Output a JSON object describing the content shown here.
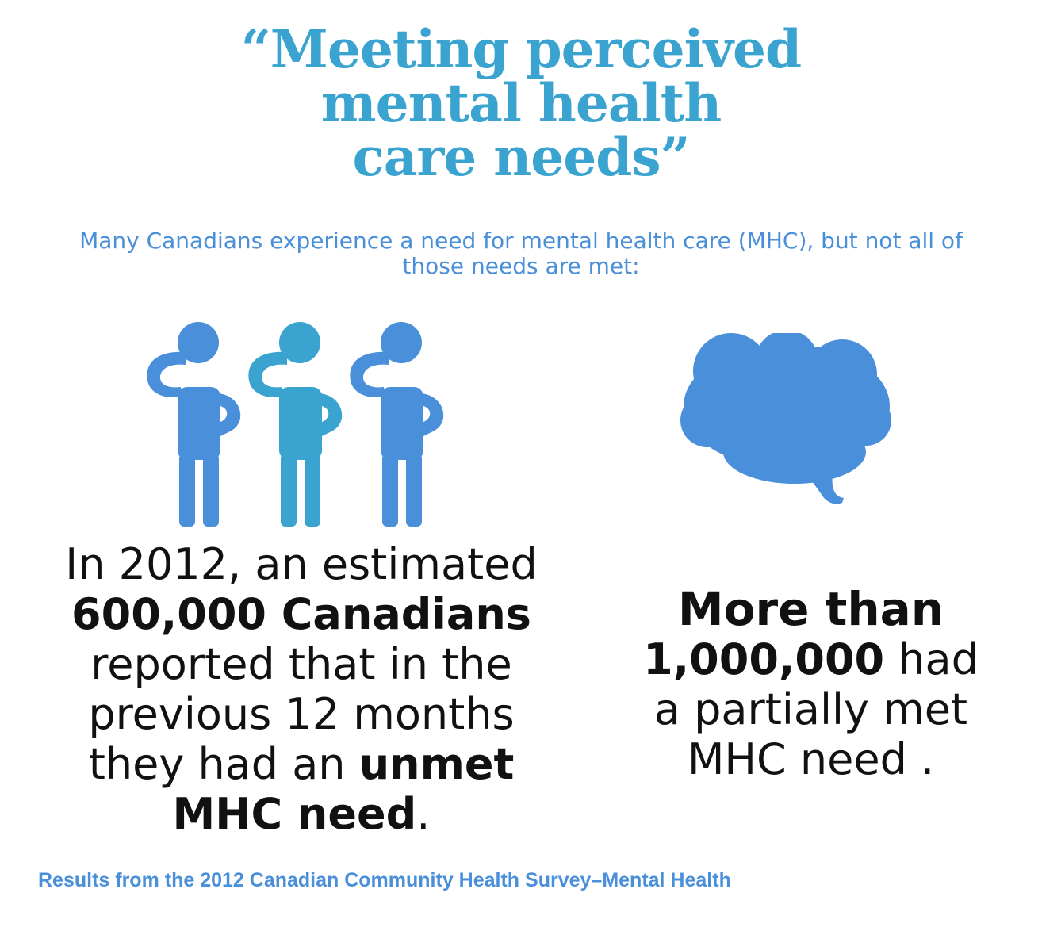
{
  "title": {
    "line1": "“Meeting perceived",
    "line2": "mental health",
    "line3": "care needs”"
  },
  "subtitle": "Many Canadians experience a need for mental health care (MHC), but not all of those needs are met:",
  "icons": {
    "people": "people-thinking-icon",
    "brain": "brain-icon",
    "colors": {
      "primary": "#4a8fd9",
      "accent": "#3aa3cf"
    }
  },
  "stat_left": {
    "line1": "In 2012, an estimated",
    "line2_bold": "600,000 Canadians",
    "line3": "reported that in the",
    "line4": "previous 12 months",
    "line5_pre": "they had an ",
    "line5_bold": "unmet",
    "line6_bold": "MHC need",
    "line6_post": "."
  },
  "stat_right": {
    "line1_bold": "More than",
    "line2_bold": "1,000,000",
    "line2_post": " had",
    "line3": "a partially met",
    "line4": "MHC need ."
  },
  "source": "Results from the 2012 Canadian Community Health Survey–Mental Health"
}
